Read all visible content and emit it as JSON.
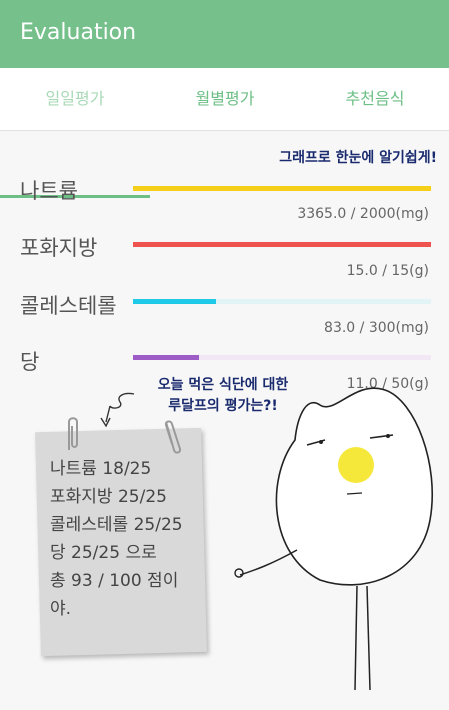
{
  "appbar": {
    "title": "Evaluation"
  },
  "tabs": [
    {
      "label": "일일평가"
    },
    {
      "label": "월별평가"
    },
    {
      "label": "추천음식"
    }
  ],
  "headline": "그래프로 한눈에 알기쉽게!",
  "nutrients": [
    {
      "name": "나트륨",
      "amount_text": "3365.0 / 2000(mg)",
      "fraction": 1.0,
      "color": "#f5cf1a",
      "track_color": "#f5cf1a"
    },
    {
      "name": "포화지방",
      "amount_text": "15.0 / 15(g)",
      "fraction": 1.0,
      "color": "#ef5350",
      "track_color": "#ef5350"
    },
    {
      "name": "콜레스테롤",
      "amount_text": "83.0 / 300(mg)",
      "fraction": 0.277,
      "color": "#1fc9e8",
      "track_color": "#e3f4f7"
    },
    {
      "name": "당",
      "amount_text": "11.0 / 50(g)",
      "fraction": 0.22,
      "color": "#9e5cc7",
      "track_color": "#f1e7f5"
    }
  ],
  "bubble": {
    "line1": "오늘 먹은 식단에 대한",
    "line2": "루달프의 평가는?!"
  },
  "note": {
    "text": "나트륨 18/25\n포화지방 25/25\n콜레스테롤 25/25\n당 25/25 으로\n총 93 / 100 점이\n야."
  }
}
